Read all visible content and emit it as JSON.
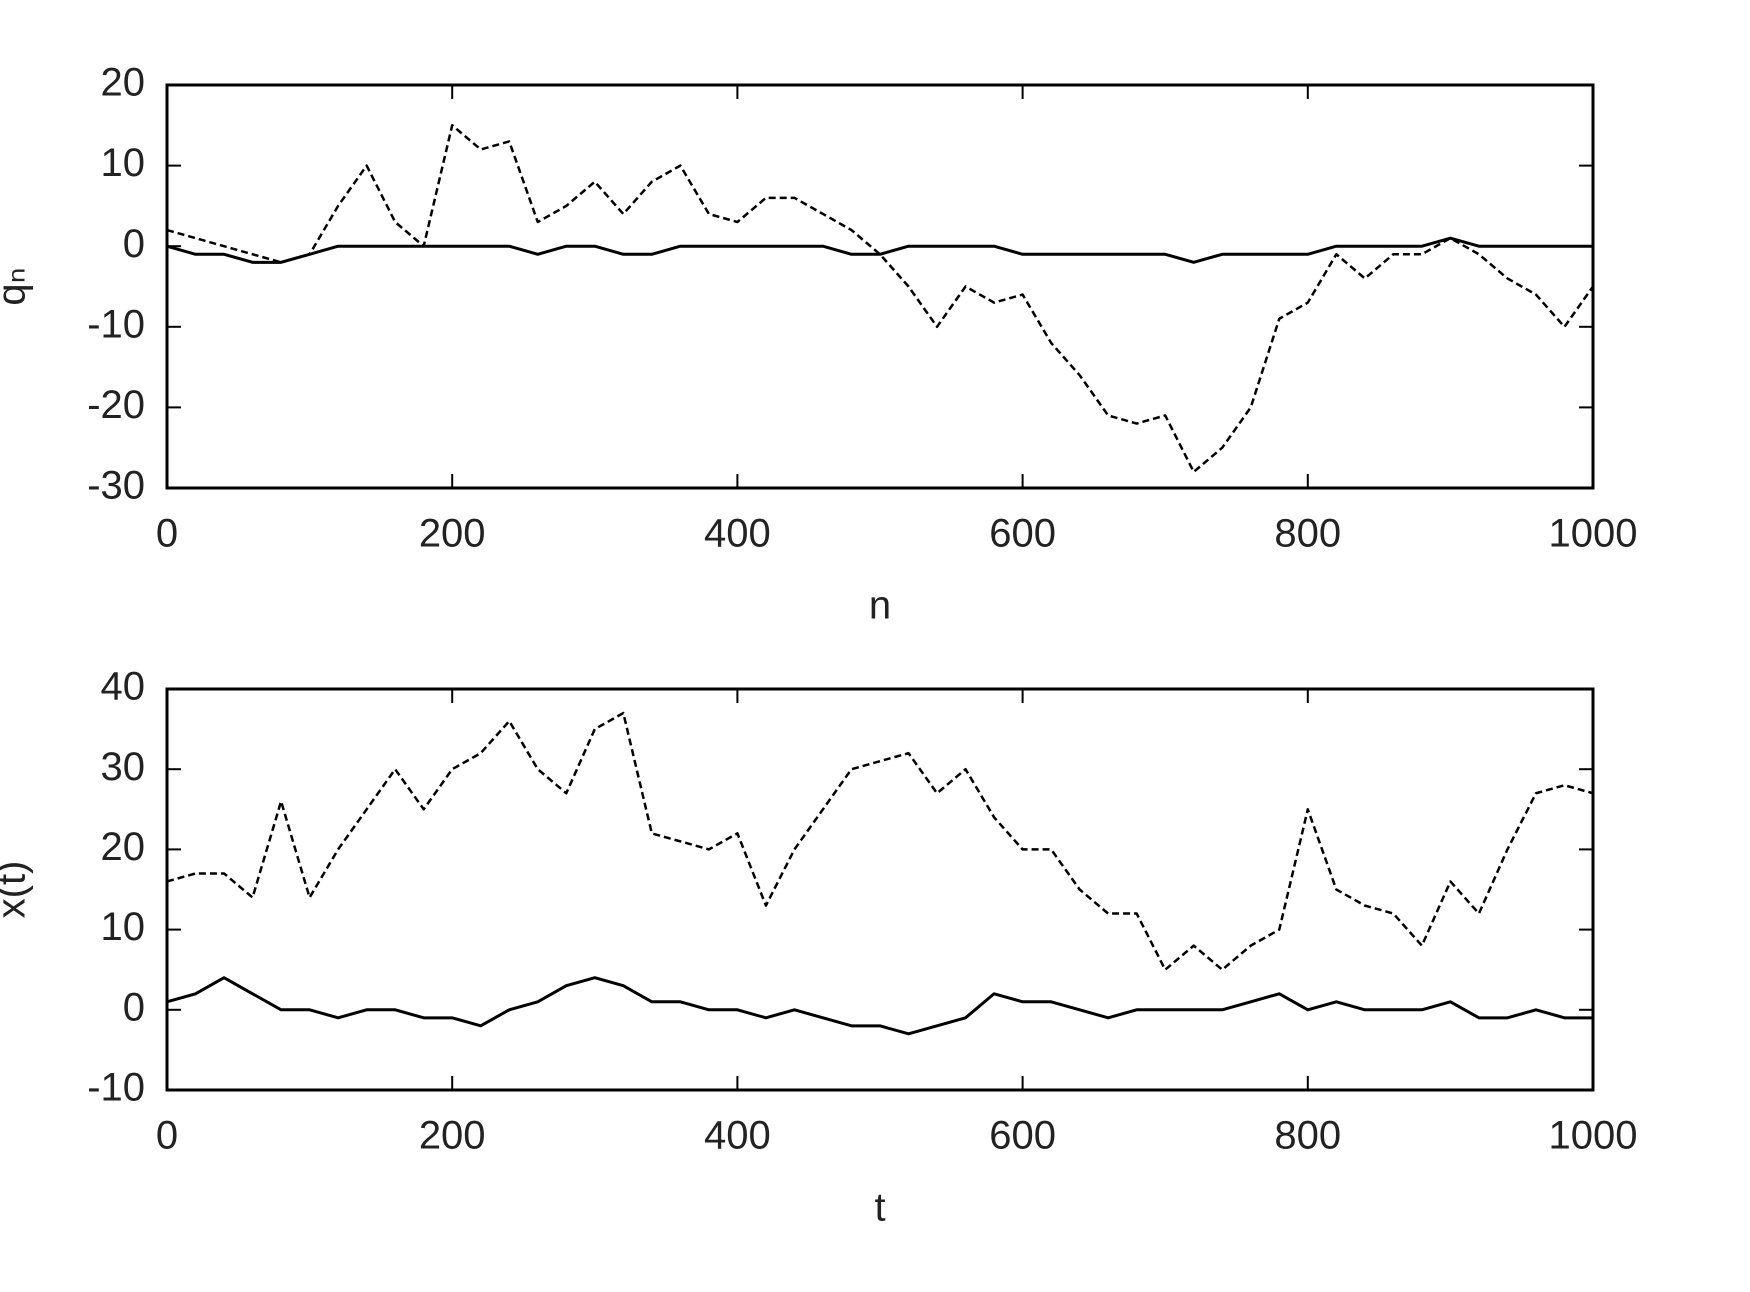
{
  "chart_data": [
    {
      "type": "line",
      "xlabel": "n",
      "ylabel": "qₙ",
      "x": [
        0,
        20,
        40,
        60,
        80,
        100,
        120,
        140,
        160,
        180,
        200,
        220,
        240,
        260,
        280,
        300,
        320,
        340,
        360,
        380,
        400,
        420,
        440,
        460,
        480,
        500,
        520,
        540,
        560,
        580,
        600,
        620,
        640,
        660,
        680,
        700,
        720,
        740,
        760,
        780,
        800,
        820,
        840,
        860,
        880,
        900,
        920,
        940,
        960,
        980,
        1000
      ],
      "series": [
        {
          "color": "#000000",
          "style": "solid",
          "values": [
            0,
            -1,
            -1,
            -2,
            -2,
            -1,
            0,
            0,
            0,
            0,
            0,
            0,
            0,
            -1,
            0,
            0,
            -1,
            -1,
            0,
            0,
            0,
            0,
            0,
            0,
            -1,
            -1,
            0,
            0,
            0,
            0,
            -1,
            -1,
            -1,
            -1,
            -1,
            -1,
            -2,
            -1,
            -1,
            -1,
            -1,
            0,
            0,
            0,
            0,
            1,
            0,
            0,
            0,
            0,
            0
          ]
        },
        {
          "color": "#000000",
          "style": "dashed",
          "values": [
            2,
            1,
            0,
            -1,
            -2,
            -1,
            5,
            10,
            3,
            0,
            15,
            12,
            13,
            3,
            5,
            8,
            4,
            8,
            10,
            4,
            3,
            6,
            6,
            4,
            2,
            -1,
            -5,
            -10,
            -5,
            -7,
            -6,
            -12,
            -16,
            -21,
            -22,
            -21,
            -28,
            -25,
            -20,
            -9,
            -7,
            -1,
            -4,
            -1,
            -1,
            1,
            -1,
            -4,
            -6,
            -10,
            -5
          ]
        }
      ],
      "xlim": [
        0,
        1000
      ],
      "xticks": [
        0,
        200,
        400,
        600,
        800,
        1000
      ],
      "ylim": [
        -30,
        20
      ],
      "yticks": [
        -30,
        -20,
        -10,
        0,
        10,
        20
      ]
    },
    {
      "type": "line",
      "xlabel": "t",
      "ylabel": "x(t)",
      "x": [
        0,
        20,
        40,
        60,
        80,
        100,
        120,
        140,
        160,
        180,
        200,
        220,
        240,
        260,
        280,
        300,
        320,
        340,
        360,
        380,
        400,
        420,
        440,
        460,
        480,
        500,
        520,
        540,
        560,
        580,
        600,
        620,
        640,
        660,
        680,
        700,
        720,
        740,
        760,
        780,
        800,
        820,
        840,
        860,
        880,
        900,
        920,
        940,
        960,
        980,
        1000
      ],
      "series": [
        {
          "color": "#000000",
          "style": "solid",
          "values": [
            1,
            2,
            4,
            2,
            0,
            0,
            -1,
            0,
            0,
            -1,
            -1,
            -2,
            0,
            1,
            3,
            4,
            3,
            1,
            1,
            0,
            0,
            -1,
            0,
            -1,
            -2,
            -2,
            -3,
            -2,
            -1,
            2,
            1,
            1,
            0,
            -1,
            0,
            0,
            0,
            0,
            1,
            2,
            0,
            1,
            0,
            0,
            0,
            1,
            -1,
            -1,
            0,
            -1,
            -1
          ]
        },
        {
          "color": "#000000",
          "style": "dashed",
          "values": [
            16,
            17,
            17,
            14,
            26,
            14,
            20,
            25,
            30,
            25,
            30,
            32,
            36,
            30,
            27,
            35,
            37,
            22,
            21,
            20,
            22,
            13,
            20,
            25,
            30,
            31,
            32,
            27,
            30,
            24,
            20,
            20,
            15,
            12,
            12,
            5,
            8,
            5,
            8,
            10,
            25,
            15,
            13,
            12,
            8,
            16,
            12,
            20,
            27,
            28,
            27
          ]
        }
      ],
      "xlim": [
        0,
        1000
      ],
      "xticks": [
        0,
        200,
        400,
        600,
        800,
        1000
      ],
      "ylim": [
        -10,
        40
      ],
      "yticks": [
        -10,
        0,
        10,
        20,
        30,
        40
      ]
    }
  ]
}
